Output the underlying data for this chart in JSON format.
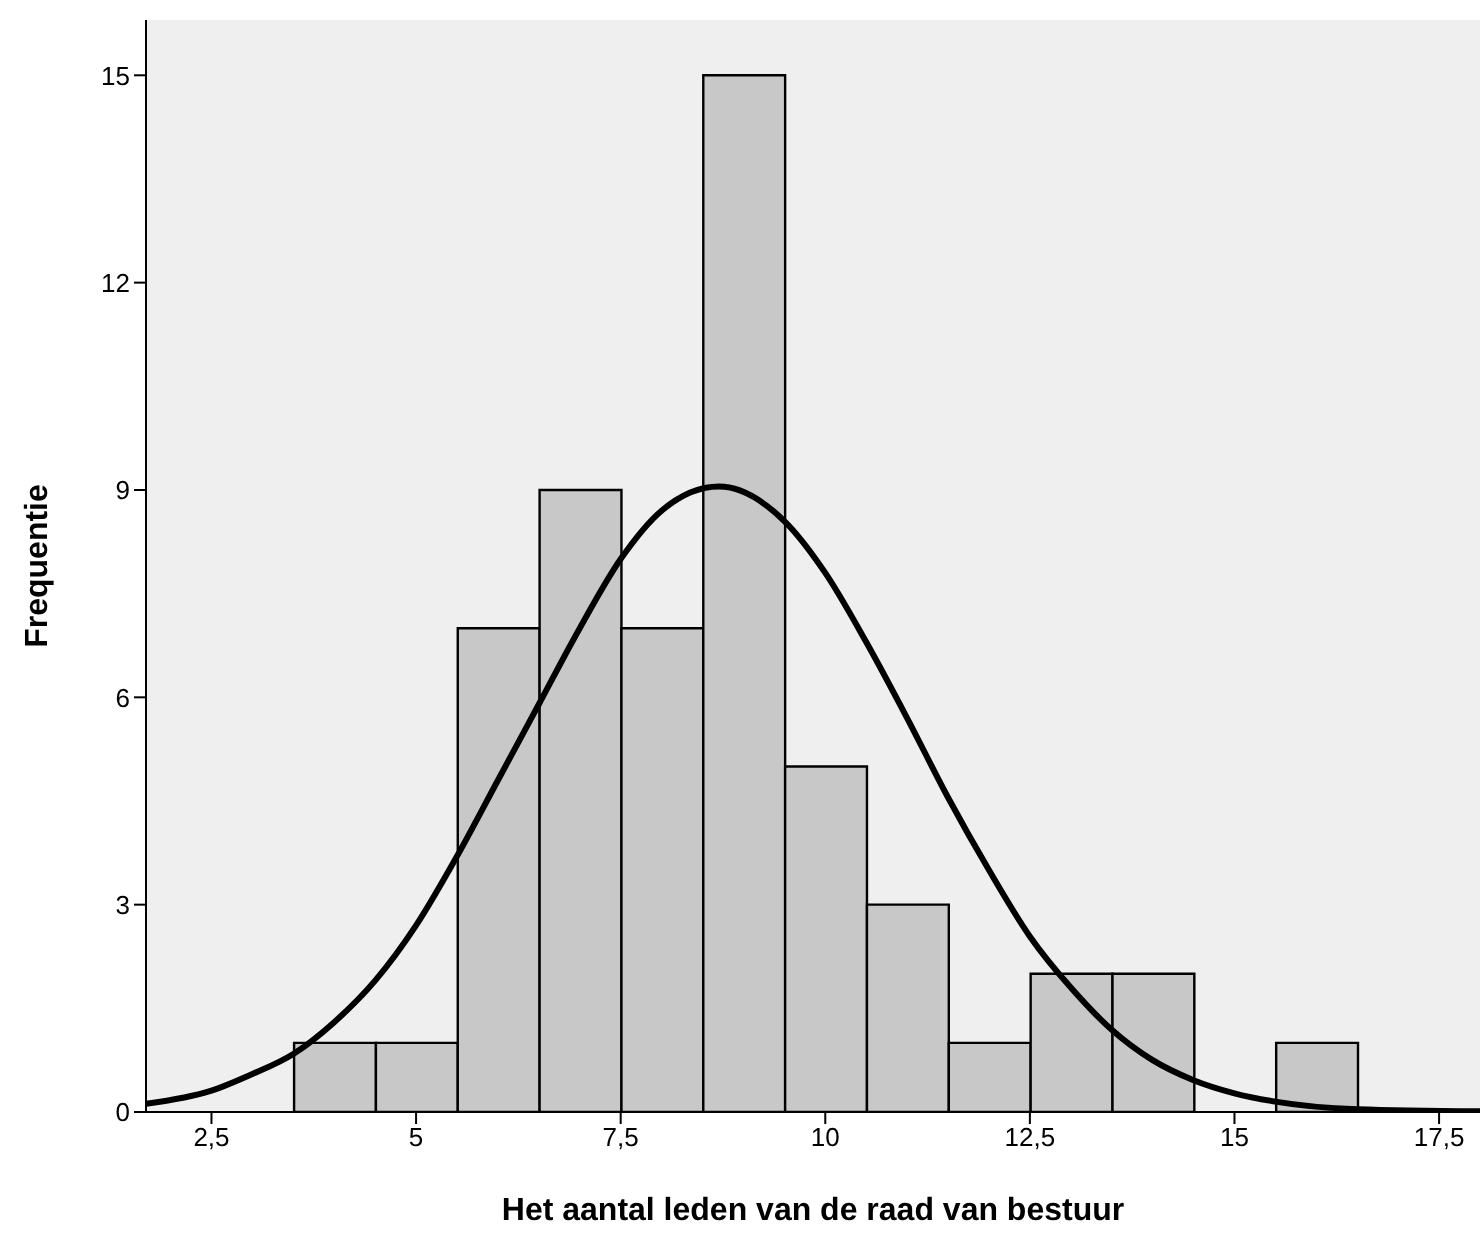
{
  "chart_data": {
    "type": "histogram",
    "xlabel": "Het aantal leden van de raad van bestuur",
    "ylabel": "Frequentie",
    "bins": [
      3.5,
      4.5,
      5.5,
      6.5,
      7.5,
      8.5,
      9.5,
      10.5,
      11.5,
      12.5,
      13.5,
      14.5,
      15.5,
      16.5
    ],
    "values": [
      1,
      1,
      7,
      9,
      7,
      15,
      5,
      3,
      1,
      2,
      2,
      0,
      1
    ],
    "color": "#c8c8c8",
    "series": [
      {
        "type": "line",
        "color": "#000000",
        "x": [
          1.7,
          2.5,
          3,
          3.5,
          4,
          4.5,
          5,
          5.5,
          6,
          6.5,
          7,
          7.5,
          8,
          8.7,
          9.5,
          10,
          10.5,
          11,
          11.5,
          12,
          12.5,
          13,
          13.5,
          14,
          14.5,
          15,
          15.5,
          16.5,
          18
        ],
        "values": [
          0.12,
          0.31,
          0.55,
          0.84,
          1.3,
          1.9,
          2.7,
          3.7,
          4.8,
          5.9,
          7.0,
          8.0,
          8.7,
          9.05,
          8.55,
          7.8,
          6.8,
          5.7,
          4.55,
          3.5,
          2.54,
          1.8,
          1.19,
          0.75,
          0.46,
          0.27,
          0.15,
          0.04,
          0.01
        ]
      }
    ],
    "xlim": [
      1.7,
      18.0
    ],
    "xticks": [
      {
        "value": 2.5,
        "label": "2,5"
      },
      5,
      {
        "value": 7.5,
        "label": "7,5"
      },
      10,
      {
        "value": 12.5,
        "label": "12,5"
      },
      15,
      {
        "value": 17.5,
        "label": "17,5"
      }
    ],
    "ylim": [
      0,
      15.8
    ],
    "yticks": [
      0,
      3,
      6,
      9,
      12,
      15
    ],
    "grid": false,
    "legend": false,
    "marker": "none",
    "line_style": "solid"
  }
}
